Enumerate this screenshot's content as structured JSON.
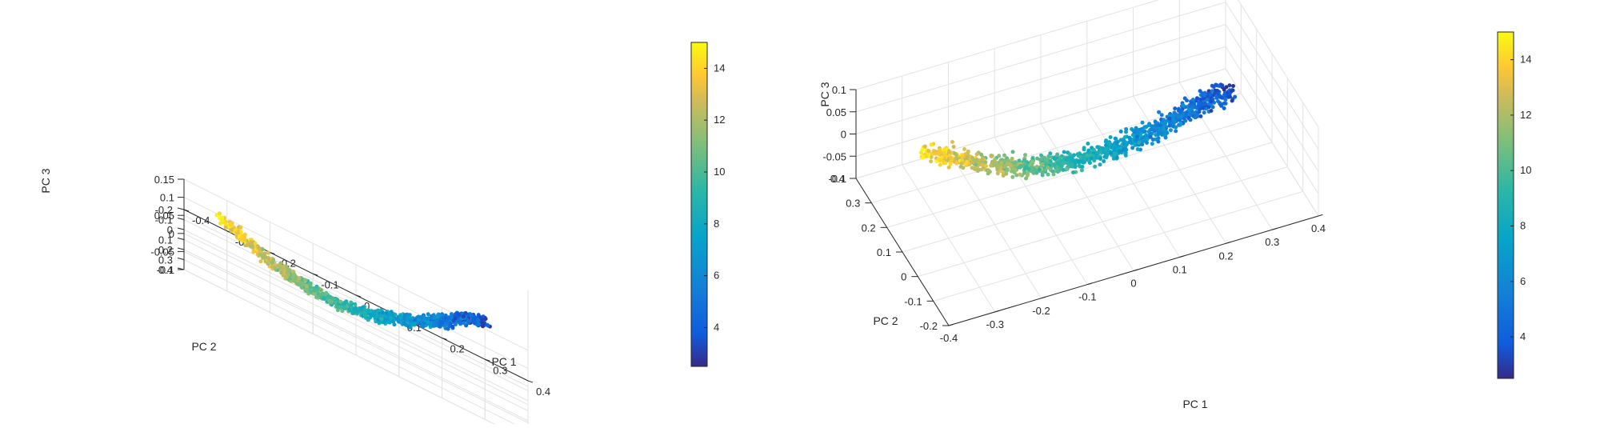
{
  "chart_data": [
    {
      "type": "scatter",
      "view": "3d-perspective-1",
      "xlabel": "PC 1",
      "ylabel": "PC 2",
      "zlabel": "PC 3",
      "xlim": [
        -0.4,
        0.4
      ],
      "ylim": [
        -0.2,
        0.4
      ],
      "zlim": [
        -0.1,
        0.15
      ],
      "x_ticks": [
        "-0.4",
        "-0.3",
        "-0.2",
        "-0.1",
        "0",
        "0.1",
        "0.2",
        "0.3",
        "0.4"
      ],
      "y_ticks": [
        "-0.2",
        "-0.1",
        "0",
        "0.1",
        "0.2",
        "0.3",
        "0.4"
      ],
      "z_ticks": [
        "-0.1",
        "-0.05",
        "0",
        "0.05",
        "0.1",
        "0.15"
      ],
      "grid": true,
      "colormap": "parula",
      "colorbar": {
        "min": 2.5,
        "max": 15,
        "ticks": [
          "4",
          "6",
          "8",
          "10",
          "12",
          "14"
        ]
      }
    },
    {
      "type": "scatter",
      "view": "3d-perspective-2",
      "xlabel": "PC 1",
      "ylabel": "PC 2",
      "zlabel": "PC 3",
      "xlim": [
        -0.4,
        0.4
      ],
      "ylim": [
        -0.2,
        0.4
      ],
      "zlim": [
        -0.1,
        0.1
      ],
      "x_ticks": [
        "-0.4",
        "-0.3",
        "-0.2",
        "-0.1",
        "0",
        "0.1",
        "0.2",
        "0.3",
        "0.4"
      ],
      "y_ticks": [
        "-0.2",
        "-0.1",
        "0",
        "0.1",
        "0.2",
        "0.3",
        "0.4"
      ],
      "z_ticks": [
        "-0.1",
        "-0.05",
        "0",
        "0.05",
        "0.1"
      ],
      "grid": true,
      "colormap": "parula",
      "colorbar": {
        "min": 2.5,
        "max": 15,
        "ticks": [
          "4",
          "6",
          "8",
          "10",
          "12",
          "14"
        ]
      }
    }
  ]
}
